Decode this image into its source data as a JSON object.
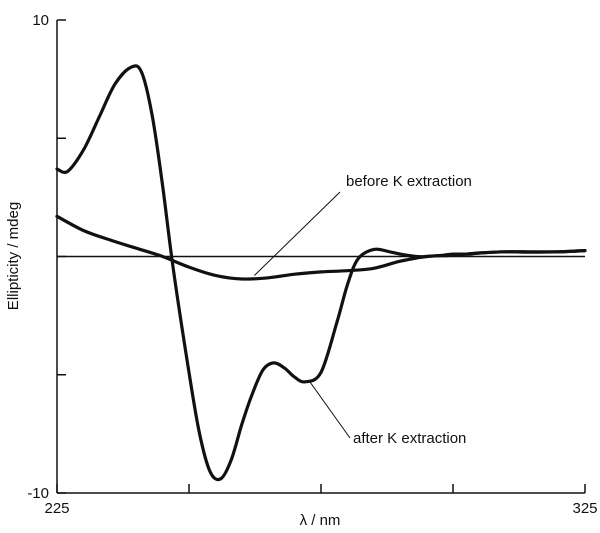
{
  "chart_data": {
    "type": "line",
    "title": "",
    "xlabel": "λ / nm",
    "ylabel": "Ellipticity / mdeg",
    "xlim": [
      225,
      325
    ],
    "ylim": [
      -10,
      10
    ],
    "x_tick_labels": [
      "225",
      "325"
    ],
    "y_tick_labels": [
      "10",
      "-10"
    ],
    "x_ticks": [
      225,
      250,
      275,
      300,
      325
    ],
    "y_ticks": [
      10,
      5,
      0,
      -5,
      -10
    ],
    "grid": false,
    "legend": "none",
    "zero_line": true,
    "annotations": [
      {
        "text": "before K extraction",
        "series": 0,
        "at_x": 262
      },
      {
        "text": "after K extraction",
        "series": 1,
        "at_x": 272
      }
    ],
    "series": [
      {
        "x": [
          225,
          230,
          235,
          240,
          245,
          250,
          255,
          260,
          265,
          270,
          275,
          280,
          285,
          290,
          295,
          300,
          305,
          310,
          315,
          320,
          325
        ],
        "values": [
          1.7,
          1.1,
          0.7,
          0.35,
          0.0,
          -0.45,
          -0.8,
          -0.95,
          -0.9,
          -0.75,
          -0.65,
          -0.6,
          -0.5,
          -0.2,
          0.0,
          0.05,
          0.15,
          0.2,
          0.18,
          0.2,
          0.25
        ]
      },
      {
        "x": [
          225,
          227,
          230,
          233,
          236,
          239,
          241,
          243,
          245,
          247,
          250,
          252,
          254,
          256,
          258,
          260,
          262,
          264,
          266,
          268,
          270,
          272,
          275,
          278,
          280,
          282,
          285,
          288,
          290,
          293,
          295,
          298,
          300,
          303,
          305,
          310,
          315,
          320,
          325
        ],
        "values": [
          3.7,
          3.6,
          4.5,
          5.9,
          7.3,
          8.0,
          7.8,
          6.0,
          3.0,
          -0.5,
          -4.9,
          -7.5,
          -9.1,
          -9.4,
          -8.6,
          -7.1,
          -5.8,
          -4.8,
          -4.5,
          -4.7,
          -5.1,
          -5.3,
          -4.9,
          -2.8,
          -1.2,
          -0.1,
          0.3,
          0.2,
          0.1,
          0.0,
          0.0,
          0.05,
          0.1,
          0.1,
          0.15,
          0.2,
          0.2,
          0.2,
          0.25
        ]
      }
    ]
  }
}
